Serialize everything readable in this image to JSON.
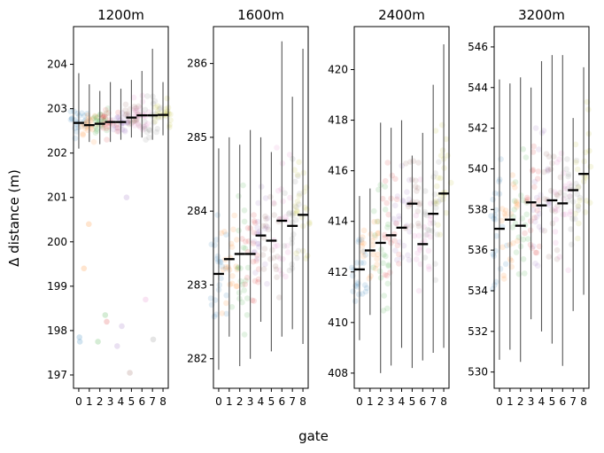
{
  "chart_data": {
    "type": "strip",
    "xlabel": "gate",
    "ylabel": "Δ distance (m)",
    "categories": [
      "0",
      "1",
      "2",
      "3",
      "4",
      "5",
      "6",
      "7",
      "8"
    ],
    "colors": [
      "#1f77b4",
      "#ff7f0e",
      "#2ca02c",
      "#d62728",
      "#9467bd",
      "#8c564b",
      "#e377c2",
      "#7f7f7f",
      "#bcbd22"
    ],
    "panels": [
      {
        "title": "1200m",
        "ylim": [
          196.7,
          204.85
        ],
        "yticks": [
          197,
          198,
          199,
          200,
          201,
          202,
          203,
          204
        ],
        "means": [
          202.68,
          202.63,
          202.66,
          202.7,
          202.7,
          202.8,
          202.85,
          202.85,
          202.86
        ],
        "err_low": [
          202.1,
          202.25,
          202.2,
          202.25,
          202.3,
          202.35,
          202.35,
          202.3,
          202.4
        ],
        "err_high": [
          203.8,
          203.55,
          203.4,
          203.6,
          203.45,
          203.65,
          203.85,
          204.35,
          203.6
        ],
        "outliers": [
          [
            0,
            197.75
          ],
          [
            0,
            197.85
          ],
          [
            1,
            200.4
          ],
          [
            1,
            199.4
          ],
          [
            2,
            198.35
          ],
          [
            2,
            197.75
          ],
          [
            3,
            198.2
          ],
          [
            4,
            201.0
          ],
          [
            4,
            198.1
          ],
          [
            4,
            197.65
          ],
          [
            5,
            197.05
          ],
          [
            6,
            198.7
          ],
          [
            7,
            197.8
          ]
        ]
      },
      {
        "title": "1600m",
        "ylim": [
          281.6,
          286.5
        ],
        "yticks": [
          282,
          283,
          284,
          285,
          286
        ],
        "means": [
          283.15,
          283.35,
          283.42,
          283.42,
          283.67,
          283.6,
          283.87,
          283.8,
          283.95
        ],
        "err_low": [
          281.85,
          282.3,
          281.9,
          282.0,
          282.5,
          282.1,
          282.3,
          282.4,
          282.2
        ],
        "err_high": [
          284.85,
          285.0,
          284.9,
          285.1,
          285.0,
          284.8,
          286.3,
          285.55,
          286.2
        ],
        "outliers": []
      },
      {
        "title": "2400m",
        "ylim": [
          407.4,
          421.7
        ],
        "yticks": [
          408,
          410,
          412,
          414,
          416,
          418,
          420
        ],
        "means": [
          412.1,
          412.85,
          413.15,
          413.45,
          413.75,
          414.7,
          413.1,
          414.3,
          415.1
        ],
        "err_low": [
          409.3,
          410.3,
          408.0,
          408.3,
          409.0,
          408.2,
          408.5,
          408.8,
          409.0
        ],
        "err_high": [
          415.0,
          415.3,
          417.9,
          417.7,
          418.0,
          416.6,
          417.5,
          419.4,
          421.0
        ],
        "outliers": []
      },
      {
        "title": "3200m",
        "ylim": [
          529.2,
          547.0
        ],
        "yticks": [
          530,
          532,
          534,
          536,
          538,
          540,
          542,
          544,
          546
        ],
        "means": [
          537.05,
          537.5,
          537.2,
          538.35,
          538.2,
          538.45,
          538.3,
          538.95,
          539.75
        ],
        "err_low": [
          530.6,
          531.1,
          530.5,
          532.6,
          532.0,
          531.4,
          530.3,
          533.0,
          533.8
        ],
        "err_high": [
          544.4,
          544.2,
          544.5,
          544.0,
          545.3,
          545.6,
          545.6,
          542.5,
          545.0
        ],
        "outliers": []
      }
    ]
  }
}
